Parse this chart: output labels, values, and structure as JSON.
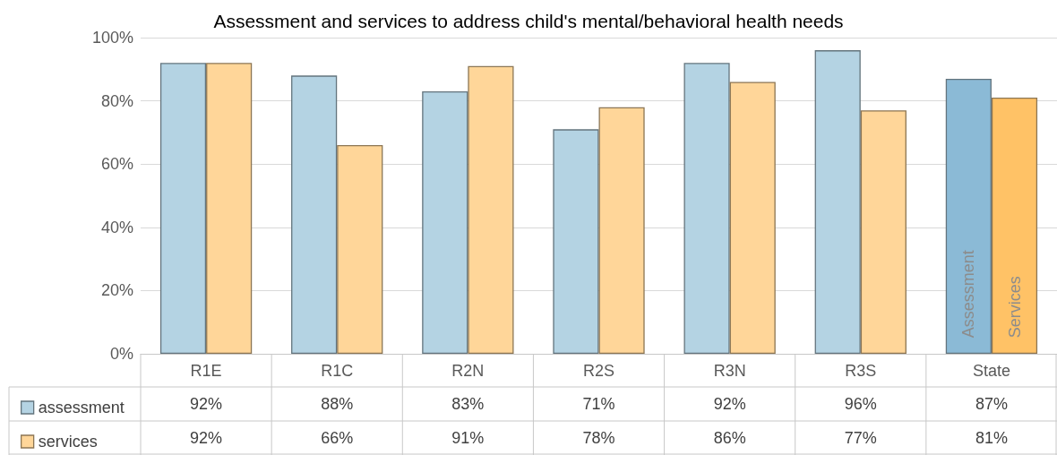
{
  "chart_data": {
    "type": "bar",
    "title": "Assessment and services to address child's mental/behavioral health needs",
    "categories": [
      "R1E",
      "R1C",
      "R2N",
      "R2S",
      "R3N",
      "R3S",
      "State"
    ],
    "series": [
      {
        "name": "assessment",
        "color": "#b4d3e3",
        "colors": [
          "#b4d3e3",
          "#b4d3e3",
          "#b4d3e3",
          "#b4d3e3",
          "#b4d3e3",
          "#b4d3e3",
          "#8bbad6"
        ],
        "values": [
          92,
          88,
          83,
          71,
          92,
          96,
          87
        ],
        "value_labels": [
          "92%",
          "88%",
          "83%",
          "71%",
          "92%",
          "96%",
          "87%"
        ]
      },
      {
        "name": "services",
        "color": "#ffd699",
        "colors": [
          "#ffd699",
          "#ffd699",
          "#ffd699",
          "#ffd699",
          "#ffd699",
          "#ffd699",
          "#ffc266"
        ],
        "values": [
          92,
          66,
          91,
          78,
          86,
          77,
          81
        ],
        "value_labels": [
          "92%",
          "66%",
          "91%",
          "78%",
          "86%",
          "77%",
          "81%"
        ]
      }
    ],
    "ylim": [
      0,
      100
    ],
    "yticks": [
      {
        "value": 0,
        "label": "0%"
      },
      {
        "value": 20,
        "label": "20%"
      },
      {
        "value": 40,
        "label": "40%"
      },
      {
        "value": 60,
        "label": "60%"
      },
      {
        "value": 80,
        "label": "80%"
      },
      {
        "value": 100,
        "label": "100%"
      }
    ],
    "grid": "y",
    "legend": "bottom left",
    "annotations": [
      {
        "text": "Assessment",
        "x": "State",
        "y": 5
      },
      {
        "text": "Services",
        "x": "State",
        "y": 5
      }
    ]
  }
}
